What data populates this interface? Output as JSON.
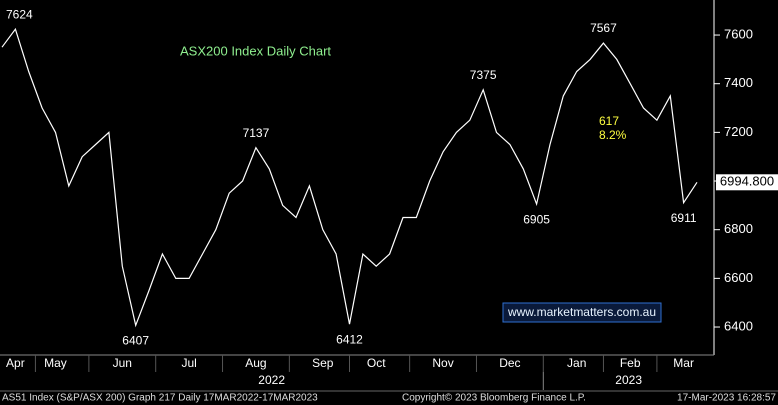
{
  "chart_data": {
    "type": "line",
    "title": "ASX200 Index Daily Chart",
    "categories": [
      null,
      "Apr",
      null,
      null,
      "May",
      null,
      null,
      null,
      null,
      "Jun",
      null,
      null,
      null,
      null,
      "Jul",
      null,
      null,
      null,
      null,
      "Aug",
      null,
      null,
      null,
      null,
      "Sep",
      null,
      null,
      null,
      "Oct",
      null,
      null,
      null,
      null,
      "Nov",
      null,
      null,
      null,
      null,
      "Dec",
      null,
      null,
      null,
      null,
      "Jan",
      null,
      null,
      null,
      "Feb",
      null,
      null,
      null,
      "Mar",
      null
    ],
    "year_labels": [
      "2022",
      "2023"
    ],
    "series": [
      {
        "name": "AS51 Index",
        "color": "#ffffff",
        "values": [
          7550,
          7624,
          7450,
          7300,
          7200,
          6980,
          7100,
          7150,
          7200,
          6650,
          6407,
          6550,
          6700,
          6600,
          6600,
          6700,
          6800,
          6950,
          7000,
          7137,
          7050,
          6900,
          6850,
          6980,
          6800,
          6700,
          6412,
          6700,
          6650,
          6700,
          6850,
          6850,
          7000,
          7120,
          7200,
          7250,
          7375,
          7200,
          7150,
          7050,
          6905,
          7150,
          7350,
          7450,
          7500,
          7567,
          7500,
          7400,
          7300,
          7250,
          7350,
          6911,
          6994.8
        ],
        "last_value_label": "6994.800"
      }
    ],
    "ylim": [
      6285,
      7744
    ],
    "yticks": [
      6400,
      6600,
      6800,
      7000,
      7200,
      7400,
      7600
    ],
    "annotations": [
      {
        "text": 7624,
        "index": 1
      },
      {
        "text": 6407,
        "index": 10
      },
      {
        "text": 7137,
        "index": 19
      },
      {
        "text": 6412,
        "index": 26
      },
      {
        "text": 7375,
        "index": 36
      },
      {
        "text": 6905,
        "index": 40
      },
      {
        "text": 7567,
        "index": 45
      },
      {
        "text": 6911,
        "index": 51
      }
    ],
    "move_points": 617,
    "move_percent": "8.2%",
    "watermark": "www.marketmatters.com.au",
    "footer": {
      "left": "AS51 Index (S&P/ASX 200) Graph 217  Daily 17MAR2022-17MAR2023",
      "middle": "Copyright© 2023 Bloomberg Finance L.P.",
      "right": "17-Mar-2023 16:28:57"
    }
  }
}
